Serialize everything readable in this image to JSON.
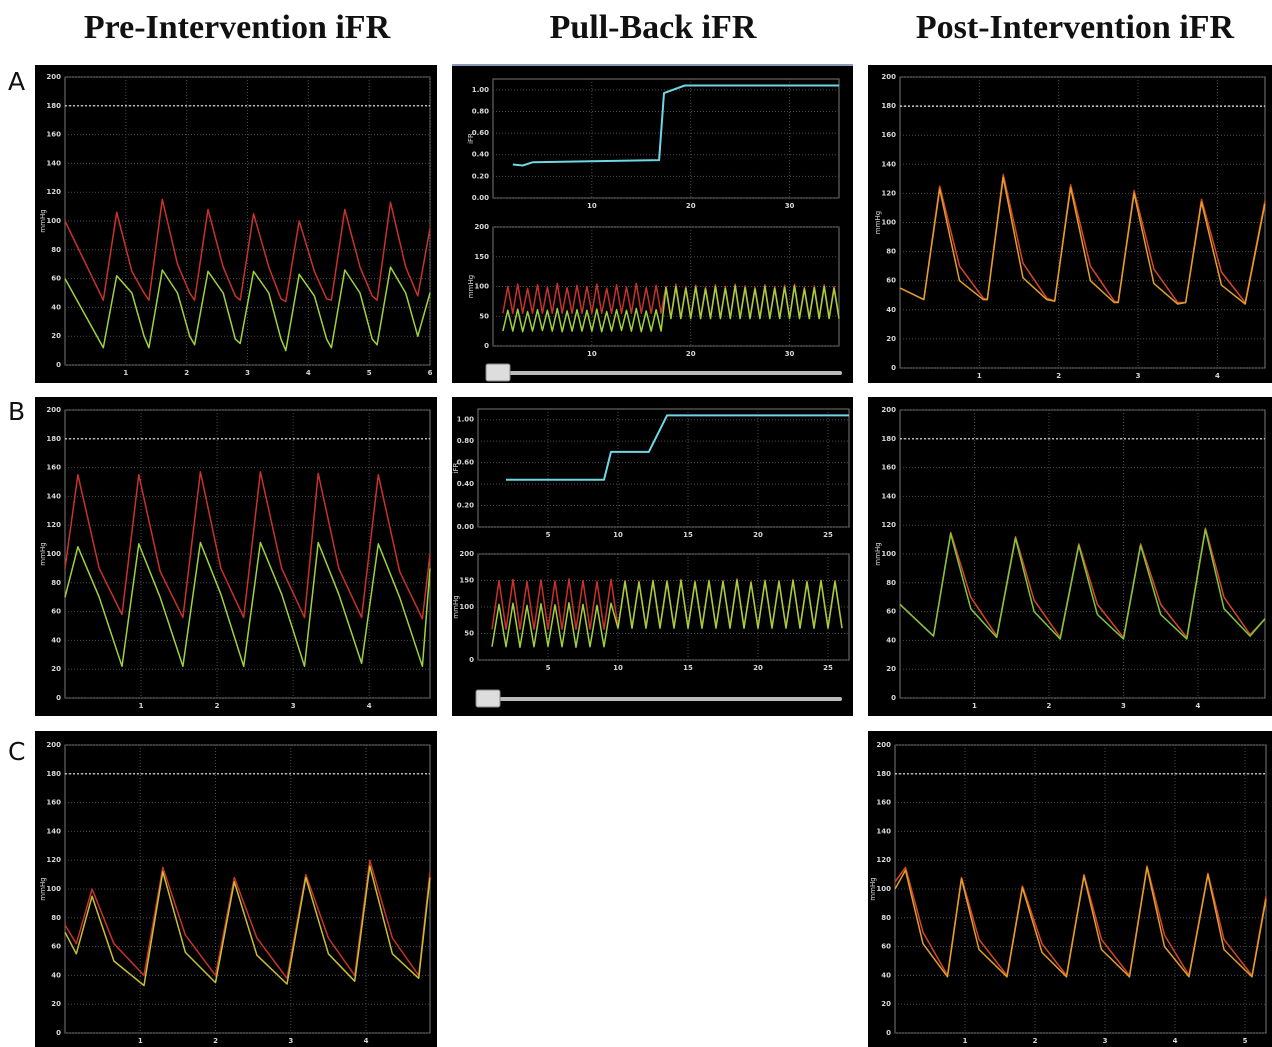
{
  "column_titles": [
    "Pre-Intervention iFR",
    "Pull-Back iFR",
    "Post-Intervention iFR"
  ],
  "row_labels": [
    "A",
    "B",
    "C"
  ],
  "chart_data": [
    {
      "type": "line",
      "ylabel": "mmHg",
      "grid": true,
      "reference_line": 180,
      "xlim": [
        0,
        6
      ],
      "ylim": [
        0,
        200
      ],
      "xticks": [
        1,
        2,
        3,
        4,
        5,
        6
      ],
      "yticks": [
        0,
        20,
        40,
        60,
        80,
        100,
        120,
        140,
        160,
        180,
        200
      ],
      "x": [
        0,
        0.63,
        0.85,
        1.1,
        1.3,
        1.38,
        1.6,
        1.85,
        2.05,
        2.13,
        2.35,
        2.6,
        2.8,
        2.88,
        3.1,
        3.35,
        3.55,
        3.63,
        3.85,
        4.1,
        4.3,
        4.38,
        4.6,
        4.85,
        5.05,
        5.13,
        5.35,
        5.6,
        5.8,
        6.0
      ],
      "series": [
        {
          "color": "#c8322c",
          "values": [
            100,
            45,
            106,
            65,
            50,
            45,
            115,
            70,
            50,
            45,
            108,
            68,
            48,
            45,
            105,
            68,
            46,
            44,
            100,
            65,
            46,
            45,
            108,
            68,
            48,
            45,
            113,
            68,
            48,
            95
          ]
        },
        {
          "color": "#9fd23c",
          "values": [
            60,
            12,
            62,
            50,
            20,
            12,
            66,
            50,
            20,
            14,
            65,
            50,
            18,
            15,
            65,
            50,
            18,
            10,
            63,
            48,
            18,
            12,
            66,
            50,
            18,
            14,
            68,
            50,
            20,
            50
          ]
        }
      ]
    },
    {
      "type": "line",
      "ylabel": "iFR",
      "grid": true,
      "xlim": [
        0,
        35
      ],
      "ylim": [
        0,
        1.1
      ],
      "xticks": [
        10,
        20,
        30
      ],
      "yticks": [
        {
          "value": 0,
          "label": "0.00"
        },
        {
          "value": 0.2,
          "label": "0.20"
        },
        {
          "value": 0.4,
          "label": "0.40"
        },
        {
          "value": 0.6,
          "label": "0.60"
        },
        {
          "value": 0.8,
          "label": "0.80"
        },
        {
          "value": 1,
          "label": "1.00"
        }
      ],
      "x": [
        2,
        3,
        4,
        10,
        16.8,
        17.3,
        19.4,
        35
      ],
      "series": [
        {
          "color": "#6fd6e6",
          "values": [
            0.31,
            0.3,
            0.33,
            0.34,
            0.35,
            0.97,
            1.04,
            1.04
          ]
        }
      ]
    },
    {
      "type": "line",
      "ylabel": "mmHg",
      "grid": true,
      "xlim": [
        0,
        35
      ],
      "ylim": [
        0,
        200
      ],
      "xticks": [
        10,
        20,
        30
      ],
      "yticks": [
        0,
        50,
        100,
        150,
        200
      ],
      "x": [
        1,
        1.5,
        2,
        2.5,
        3,
        3.5,
        4,
        4.5,
        5,
        5.5,
        6,
        6.5,
        7,
        7.5,
        8,
        8.5,
        9,
        9.5,
        10,
        10.5,
        11,
        11.5,
        12,
        12.5,
        13,
        13.5,
        14,
        14.5,
        15,
        15.5,
        16,
        16.5,
        17,
        17.5,
        18,
        18.5,
        19,
        19.5,
        20,
        20.5,
        21,
        21.5,
        22,
        22.5,
        23,
        23.5,
        24,
        24.5,
        25,
        25.5,
        26,
        26.5,
        27,
        27.5,
        28,
        28.5,
        29,
        29.5,
        30,
        30.5,
        31,
        31.5,
        32,
        32.5,
        33,
        33.5,
        34,
        34.5,
        35
      ],
      "series": [
        {
          "color": "#c8322c",
          "values": [
            55,
            100,
            55,
            104,
            55,
            97,
            55,
            103,
            55,
            99,
            55,
            105,
            55,
            98,
            55,
            102,
            55,
            100,
            55,
            104,
            55,
            97,
            55,
            103,
            55,
            99,
            55,
            105,
            55,
            98,
            55,
            102,
            55,
            100,
            48,
            104,
            48,
            100,
            48,
            102,
            48,
            99,
            48,
            103,
            48,
            100,
            48,
            104,
            48,
            101,
            48,
            99,
            48,
            103,
            48,
            100,
            48,
            102,
            48,
            104,
            48,
            99,
            48,
            101,
            48,
            103,
            48,
            100,
            48
          ]
        },
        {
          "color": "#9fd23c",
          "values": [
            25,
            60,
            25,
            62,
            24,
            58,
            25,
            61,
            26,
            60,
            25,
            63,
            24,
            59,
            25,
            61,
            25,
            60,
            25,
            62,
            24,
            58,
            25,
            61,
            26,
            60,
            25,
            63,
            24,
            59,
            25,
            61,
            25,
            98,
            46,
            100,
            46,
            97,
            46,
            99,
            46,
            96,
            46,
            100,
            46,
            97,
            46,
            101,
            46,
            98,
            46,
            96,
            46,
            100,
            46,
            97,
            46,
            99,
            46,
            101,
            46,
            96,
            46,
            98,
            46,
            100,
            46,
            97,
            46
          ]
        }
      ]
    },
    {
      "type": "line",
      "ylabel": "mmHg",
      "grid": true,
      "reference_line": 180,
      "xlim": [
        0,
        4.6
      ],
      "ylim": [
        0,
        200
      ],
      "xticks": [
        1,
        2,
        3,
        4
      ],
      "yticks": [
        0,
        20,
        40,
        60,
        80,
        100,
        120,
        140,
        160,
        180,
        200
      ],
      "x": [
        0,
        0.3,
        0.5,
        0.75,
        1.05,
        1.1,
        1.3,
        1.55,
        1.85,
        1.95,
        2.15,
        2.4,
        2.7,
        2.75,
        2.95,
        3.2,
        3.5,
        3.6,
        3.8,
        4.05,
        4.35,
        4.6
      ],
      "series": [
        {
          "color": "#d6452a",
          "values": [
            55,
            47,
            125,
            70,
            48,
            47,
            133,
            72,
            48,
            46,
            126,
            70,
            46,
            45,
            122,
            68,
            45,
            45,
            116,
            66,
            45,
            115
          ]
        },
        {
          "color": "#e0a028",
          "values": [
            55,
            47,
            123,
            60,
            47,
            47,
            131,
            62,
            47,
            46,
            124,
            60,
            45,
            45,
            120,
            58,
            44,
            45,
            114,
            57,
            44,
            113
          ]
        }
      ]
    },
    {
      "type": "line",
      "ylabel": "mmHg",
      "grid": true,
      "reference_line": 180,
      "xlim": [
        0,
        4.8
      ],
      "ylim": [
        0,
        200
      ],
      "xticks": [
        1,
        2,
        3,
        4
      ],
      "yticks": [
        0,
        20,
        40,
        60,
        80,
        100,
        120,
        140,
        160,
        180,
        200
      ],
      "x": [
        0,
        0.17,
        0.45,
        0.75,
        0.97,
        1.25,
        1.55,
        1.78,
        2.05,
        2.35,
        2.57,
        2.85,
        3.15,
        3.33,
        3.6,
        3.9,
        4.12,
        4.4,
        4.7,
        4.8
      ],
      "series": [
        {
          "color": "#c8322c",
          "values": [
            90,
            155,
            90,
            58,
            155,
            88,
            56,
            157,
            90,
            56,
            157,
            90,
            56,
            156,
            90,
            56,
            155,
            88,
            55,
            100
          ]
        },
        {
          "color": "#9fd23c",
          "values": [
            70,
            105,
            70,
            22,
            107,
            70,
            22,
            108,
            72,
            22,
            108,
            72,
            22,
            108,
            72,
            24,
            107,
            70,
            22,
            90
          ]
        }
      ]
    },
    {
      "type": "line",
      "ylabel": "iFR",
      "grid": true,
      "xlim": [
        0,
        26.5
      ],
      "ylim": [
        0,
        1.1
      ],
      "xticks": [
        5,
        10,
        15,
        20,
        25
      ],
      "yticks": [
        {
          "value": 0,
          "label": "0.00"
        },
        {
          "value": 0.2,
          "label": "0.20"
        },
        {
          "value": 0.4,
          "label": "0.40"
        },
        {
          "value": 0.6,
          "label": "0.60"
        },
        {
          "value": 0.8,
          "label": "0.80"
        },
        {
          "value": 1,
          "label": "1.00"
        }
      ],
      "x": [
        2,
        9,
        9.5,
        12.2,
        13.5,
        26.5
      ],
      "series": [
        {
          "color": "#6fd6e6",
          "values": [
            0.44,
            0.44,
            0.7,
            0.7,
            1.04,
            1.04
          ]
        }
      ]
    },
    {
      "type": "line",
      "ylabel": "mmHg",
      "grid": true,
      "xlim": [
        0,
        26.5
      ],
      "ylim": [
        0,
        200
      ],
      "xticks": [
        5,
        10,
        15,
        20,
        25
      ],
      "yticks": [
        0,
        50,
        100,
        150,
        200
      ],
      "x": [
        1,
        1.5,
        2,
        2.5,
        3,
        3.5,
        4,
        4.5,
        5,
        5.5,
        6,
        6.5,
        7,
        7.5,
        8,
        8.5,
        9,
        9.5,
        10,
        10.5,
        11,
        11.5,
        12,
        12.5,
        13,
        13.5,
        14,
        14.5,
        15,
        15.5,
        16,
        16.5,
        17,
        17.5,
        18,
        18.5,
        19,
        19.5,
        20,
        20.5,
        21,
        21.5,
        22,
        22.5,
        23,
        23.5,
        24,
        24.5,
        25,
        25.5,
        26
      ],
      "series": [
        {
          "color": "#c8322c",
          "values": [
            58,
            150,
            58,
            152,
            58,
            148,
            58,
            151,
            58,
            149,
            58,
            153,
            58,
            150,
            58,
            148,
            58,
            152,
            62,
            150,
            62,
            149,
            62,
            151,
            62,
            150,
            62,
            152,
            62,
            149,
            62,
            151,
            62,
            150,
            62,
            153,
            62,
            148,
            62,
            151,
            62,
            150,
            62,
            152,
            62,
            149,
            62,
            151,
            62,
            150,
            62
          ]
        },
        {
          "color": "#9fd23c",
          "values": [
            25,
            105,
            25,
            107,
            24,
            103,
            25,
            106,
            26,
            104,
            25,
            108,
            24,
            105,
            25,
            103,
            25,
            107,
            60,
            148,
            60,
            147,
            60,
            149,
            60,
            148,
            60,
            150,
            60,
            147,
            60,
            149,
            60,
            148,
            60,
            151,
            60,
            146,
            60,
            149,
            60,
            148,
            60,
            150,
            60,
            147,
            60,
            149,
            60,
            148,
            60
          ]
        }
      ]
    },
    {
      "type": "line",
      "ylabel": "mmHg",
      "grid": true,
      "reference_line": 180,
      "xlim": [
        0,
        4.9
      ],
      "ylim": [
        0,
        200
      ],
      "xticks": [
        1,
        2,
        3,
        4
      ],
      "yticks": [
        0,
        20,
        40,
        60,
        80,
        100,
        120,
        140,
        160,
        180,
        200
      ],
      "x": [
        0,
        0.45,
        0.68,
        0.95,
        1.3,
        1.55,
        1.8,
        2.15,
        2.4,
        2.65,
        3.0,
        3.23,
        3.5,
        3.85,
        4.1,
        4.35,
        4.7,
        4.9
      ],
      "series": [
        {
          "color": "#d6452a",
          "values": [
            65,
            43,
            115,
            70,
            43,
            112,
            68,
            42,
            107,
            65,
            42,
            107,
            65,
            42,
            118,
            70,
            44,
            55
          ]
        },
        {
          "color": "#7cc83a",
          "values": [
            65,
            43,
            114,
            62,
            42,
            111,
            60,
            41,
            106,
            58,
            41,
            106,
            58,
            41,
            117,
            62,
            43,
            55
          ]
        }
      ]
    },
    {
      "type": "line",
      "ylabel": "mmHg",
      "grid": true,
      "reference_line": 180,
      "xlim": [
        0,
        4.85
      ],
      "ylim": [
        0,
        200
      ],
      "xticks": [
        1,
        2,
        3,
        4
      ],
      "yticks": [
        0,
        20,
        40,
        60,
        80,
        100,
        120,
        140,
        160,
        180,
        200
      ],
      "x": [
        0,
        0.15,
        0.36,
        0.65,
        1.05,
        1.3,
        1.6,
        2.0,
        2.25,
        2.55,
        2.95,
        3.2,
        3.5,
        3.85,
        4.05,
        4.35,
        4.7,
        4.85
      ],
      "series": [
        {
          "color": "#c8322c",
          "values": [
            75,
            62,
            100,
            62,
            40,
            115,
            68,
            40,
            108,
            66,
            38,
            110,
            66,
            40,
            120,
            66,
            40,
            112
          ]
        },
        {
          "color": "#c8c030",
          "values": [
            70,
            55,
            95,
            50,
            33,
            112,
            56,
            35,
            105,
            54,
            34,
            108,
            55,
            36,
            116,
            55,
            38,
            108
          ]
        }
      ]
    },
    {
      "type": "line",
      "ylabel": "mmHg",
      "grid": true,
      "reference_line": 180,
      "xlim": [
        0,
        5.3
      ],
      "ylim": [
        0,
        200
      ],
      "xticks": [
        1,
        2,
        3,
        4,
        5
      ],
      "yticks": [
        0,
        20,
        40,
        60,
        80,
        100,
        120,
        140,
        160,
        180,
        200
      ],
      "x": [
        0,
        0.15,
        0.4,
        0.75,
        0.95,
        1.2,
        1.6,
        1.82,
        2.1,
        2.45,
        2.7,
        2.95,
        3.35,
        3.6,
        3.85,
        4.2,
        4.47,
        4.7,
        5.1,
        5.3
      ],
      "series": [
        {
          "color": "#d6452a",
          "values": [
            105,
            115,
            70,
            40,
            108,
            65,
            40,
            102,
            62,
            40,
            110,
            65,
            40,
            116,
            68,
            40,
            111,
            65,
            40,
            95
          ]
        },
        {
          "color": "#e0a028",
          "values": [
            100,
            113,
            62,
            39,
            107,
            58,
            39,
            101,
            56,
            39,
            109,
            58,
            39,
            115,
            60,
            39,
            110,
            58,
            39,
            93
          ]
        }
      ]
    }
  ]
}
